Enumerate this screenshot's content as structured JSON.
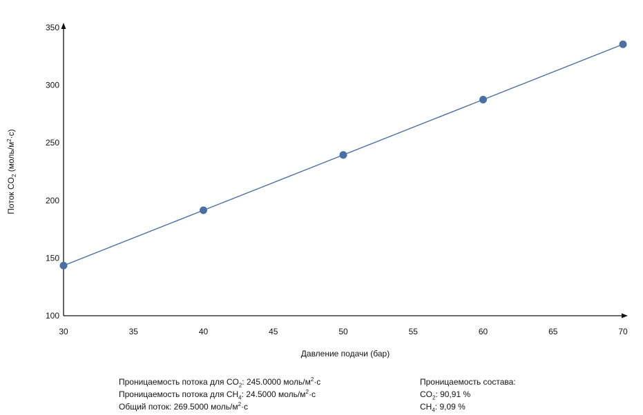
{
  "chart_data": {
    "type": "line",
    "title": "",
    "xlabel": "Давление подачи (бар)",
    "ylabel": {
      "prefix": "Поток CO",
      "sub": "2",
      "mid": " (моль/м",
      "sup": "2",
      "suffix": "·с)"
    },
    "x": [
      30,
      40,
      50,
      60,
      70
    ],
    "y": [
      143.5,
      191.5,
      239.5,
      287.5,
      335.5
    ],
    "xlim": [
      30,
      70
    ],
    "ylim": [
      100,
      350
    ],
    "xticks": [
      30,
      35,
      40,
      45,
      50,
      55,
      60,
      65,
      70
    ],
    "yticks": [
      100,
      150,
      200,
      250,
      300,
      350
    ],
    "grid": false,
    "line_color": "#4a6fa5",
    "marker_color": "#4a6fa5"
  },
  "left_info": [
    {
      "pre": "Проницаемость потока для CO",
      "sub": "2",
      "mid": ": 245.0000 моль/м",
      "sup": "2",
      "post": "·с"
    },
    {
      "pre": "Проницаемость потока для CH",
      "sub": "4",
      "mid": ": 24.5000 моль/м",
      "sup": "2",
      "post": "·с"
    },
    {
      "pre": "Общий поток: 269.5000 моль/м",
      "sub": "",
      "mid": "",
      "sup": "2",
      "post": "·с"
    }
  ],
  "right_info": {
    "heading": "Проницаемость состава:",
    "lines": [
      {
        "pre": "CO",
        "sub": "2",
        "post": ": 90,91 %"
      },
      {
        "pre": "CH",
        "sub": "4",
        "post": ": 9,09 %"
      }
    ]
  }
}
